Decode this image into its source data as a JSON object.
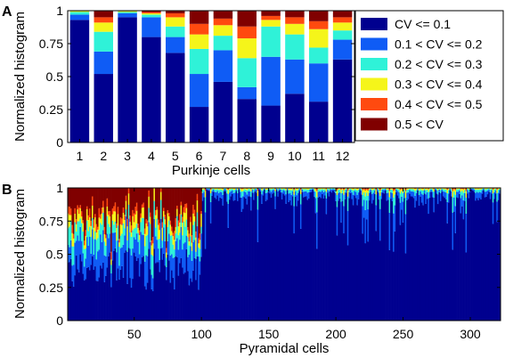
{
  "legend": {
    "entries": [
      "CV <= 0.1",
      "0.1 < CV <= 0.2",
      "0.2 < CV <= 0.3",
      "0.3 < CV <= 0.4",
      "0.4 < CV <= 0.5",
      "0.5 < CV"
    ],
    "colors": [
      "#00008f",
      "#0f5cf5",
      "#2ff2d8",
      "#f5f51a",
      "#ff4a0f",
      "#800000"
    ]
  },
  "chart_data": [
    {
      "panel_label": "A",
      "type": "bar",
      "stacked": true,
      "xlabel": "Purkinje cells",
      "ylabel": "Normalized histogram",
      "categories": [
        "1",
        "2",
        "3",
        "4",
        "5",
        "6",
        "7",
        "8",
        "9",
        "10",
        "11",
        "12"
      ],
      "ylim": [
        0,
        1
      ],
      "yticks": [
        "0",
        "0.25",
        "0.5",
        "0.75",
        "1"
      ],
      "legend_position": "right, outside",
      "series": [
        {
          "name": "CV <= 0.1",
          "values": [
            0.93,
            0.52,
            0.95,
            0.8,
            0.68,
            0.27,
            0.46,
            0.33,
            0.28,
            0.37,
            0.31,
            0.63
          ]
        },
        {
          "name": "0.1 < CV <= 0.2",
          "values": [
            0.04,
            0.17,
            0.03,
            0.15,
            0.12,
            0.25,
            0.24,
            0.09,
            0.37,
            0.26,
            0.29,
            0.15
          ]
        },
        {
          "name": "0.2 < CV <= 0.3",
          "values": [
            0.02,
            0.15,
            0.01,
            0.02,
            0.08,
            0.19,
            0.11,
            0.22,
            0.23,
            0.19,
            0.12,
            0.07
          ]
        },
        {
          "name": "0.3 < CV <= 0.4",
          "values": [
            0.01,
            0.07,
            0.01,
            0.01,
            0.07,
            0.11,
            0.08,
            0.15,
            0.05,
            0.08,
            0.14,
            0.06
          ]
        },
        {
          "name": "0.4 < CV <= 0.5",
          "values": [
            0.0,
            0.04,
            0.0,
            0.01,
            0.03,
            0.08,
            0.05,
            0.09,
            0.03,
            0.05,
            0.06,
            0.04
          ]
        },
        {
          "name": "0.5 < CV",
          "values": [
            0.0,
            0.05,
            0.0,
            0.01,
            0.02,
            0.1,
            0.06,
            0.12,
            0.04,
            0.05,
            0.08,
            0.05
          ]
        }
      ]
    },
    {
      "panel_label": "B",
      "type": "bar",
      "stacked": true,
      "xlabel": "Pyramidal cells",
      "ylabel": "Normalized histogram",
      "n_cells": 322,
      "xlim": [
        1,
        322
      ],
      "xticks": [
        "50",
        "100",
        "150",
        "200",
        "250",
        "300"
      ],
      "ylim": [
        0,
        1
      ],
      "yticks": [
        "0",
        "0.25",
        "0.5",
        "0.75",
        "1"
      ],
      "cell_groups": [
        {
          "cells": "1-100",
          "cv_le_0_1_range": [
            0.2,
            0.55
          ],
          "note": "high variability, large upper-class fractions"
        },
        {
          "cells": "101-322",
          "cv_le_0_1_range": [
            0.45,
            0.99
          ],
          "note": "mostly CV <= 0.1"
        }
      ]
    }
  ]
}
